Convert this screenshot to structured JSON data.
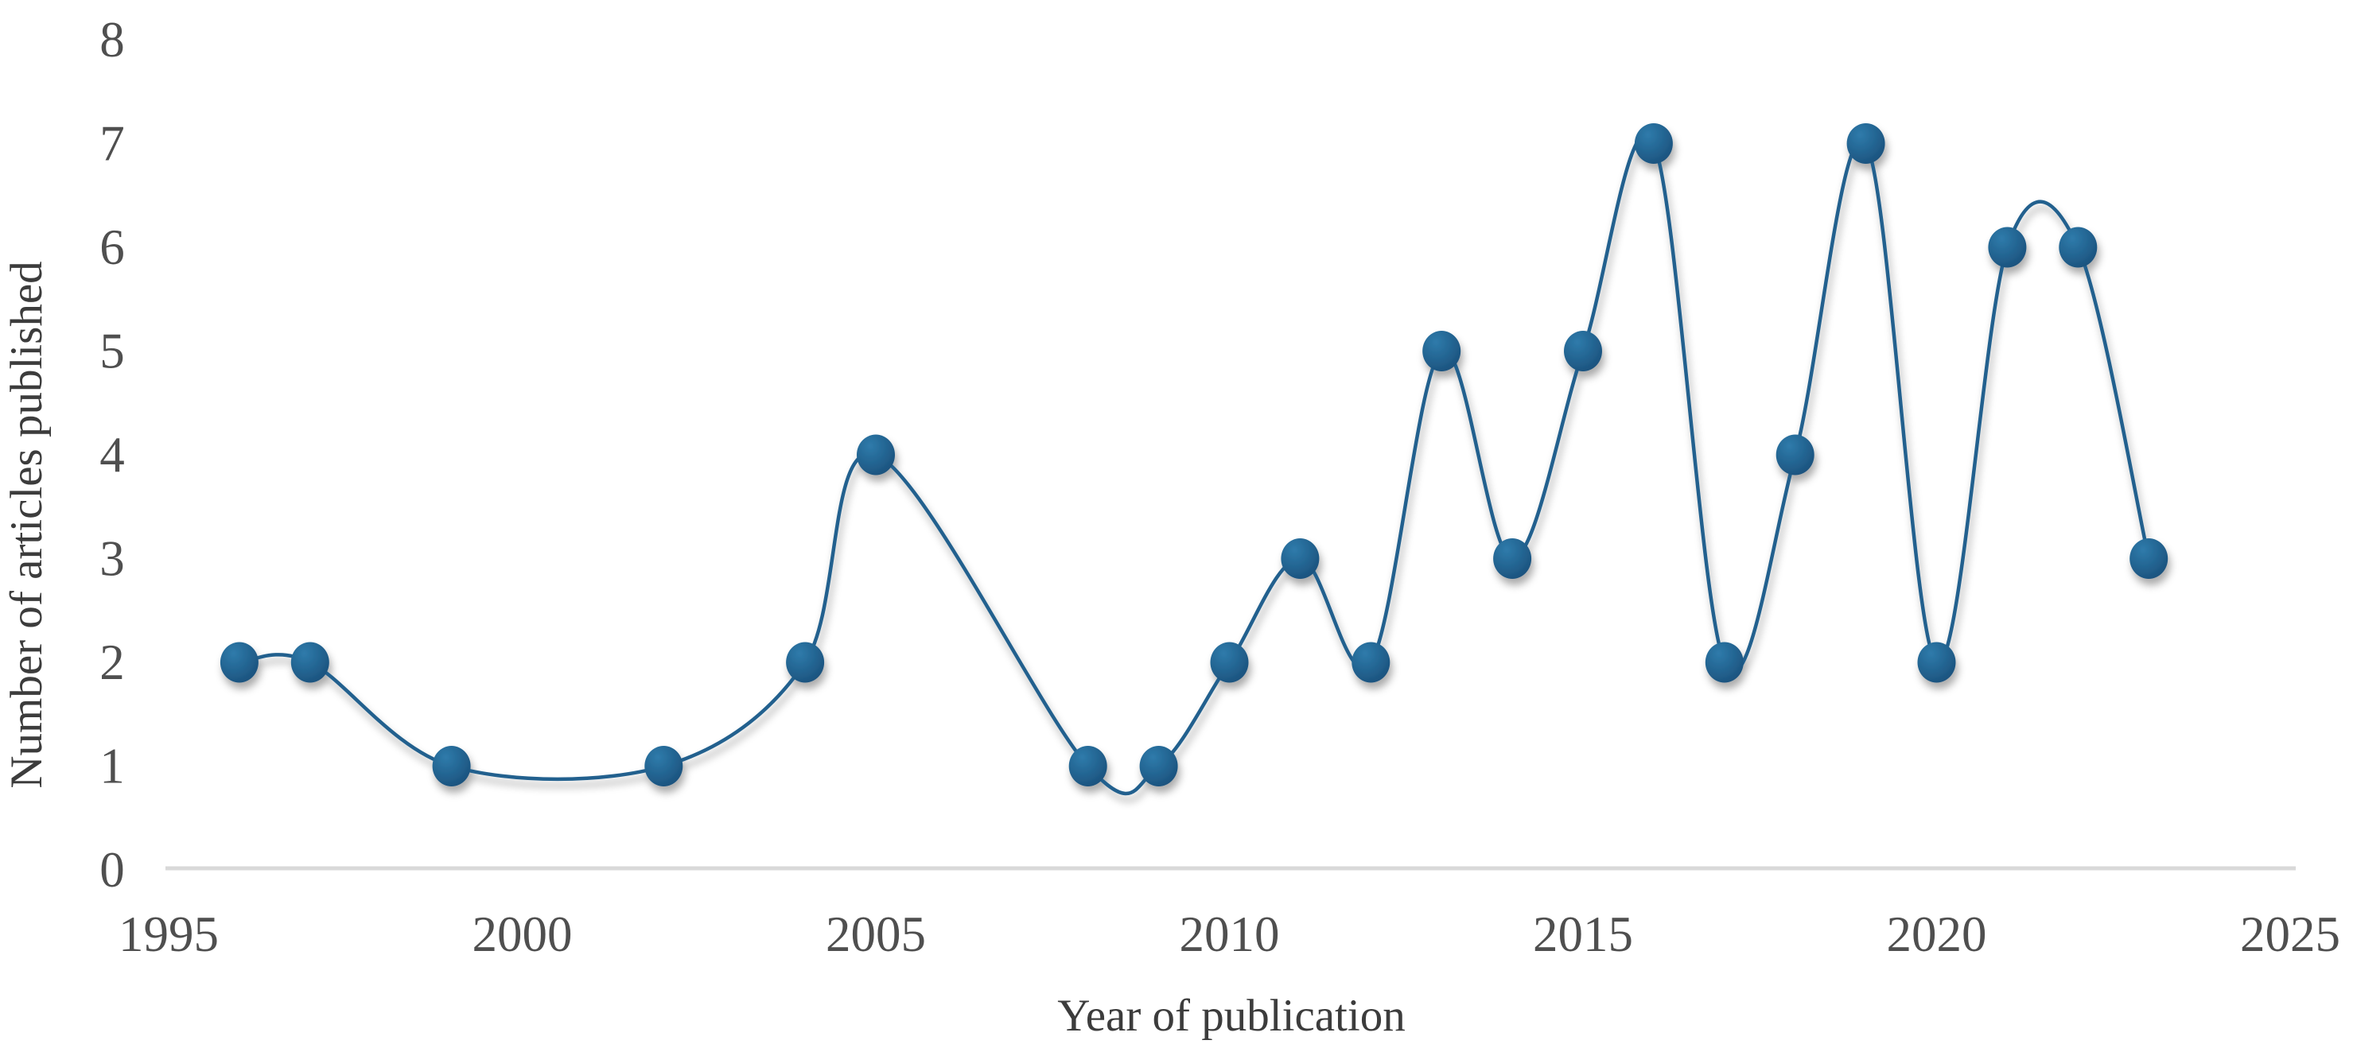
{
  "chart_data": {
    "type": "line",
    "title": "",
    "xlabel": "Year of publication",
    "ylabel": "Number of articles published",
    "x": [
      1996,
      1997,
      1999,
      2002,
      2004,
      2005,
      2008,
      2009,
      2010,
      2011,
      2012,
      2013,
      2014,
      2015,
      2016,
      2017,
      2018,
      2019,
      2020,
      2021,
      2022,
      2023
    ],
    "y": [
      2,
      2,
      1,
      1,
      2,
      4,
      1,
      1,
      2,
      3,
      2,
      5,
      3,
      5,
      7,
      2,
      4,
      7,
      2,
      6,
      6,
      3
    ],
    "x_ticks": [
      1995,
      2000,
      2005,
      2010,
      2015,
      2020,
      2025
    ],
    "y_ticks": [
      0,
      1,
      2,
      3,
      4,
      5,
      6,
      7,
      8
    ],
    "xlim": [
      1995,
      2025
    ],
    "ylim": [
      0,
      8
    ],
    "grid": false,
    "legend": false,
    "line_smooth": true,
    "marker": "circle"
  },
  "colors": {
    "line": "#20618E",
    "marker_highlight": "#2F7BAB",
    "marker_mid": "#226390",
    "marker_dark": "#1B4D78",
    "axis_line": "#D9D9D9",
    "tick_label": "#4F4F4F",
    "axis_title": "#3C3C3C",
    "background": "#FFFFFF"
  }
}
